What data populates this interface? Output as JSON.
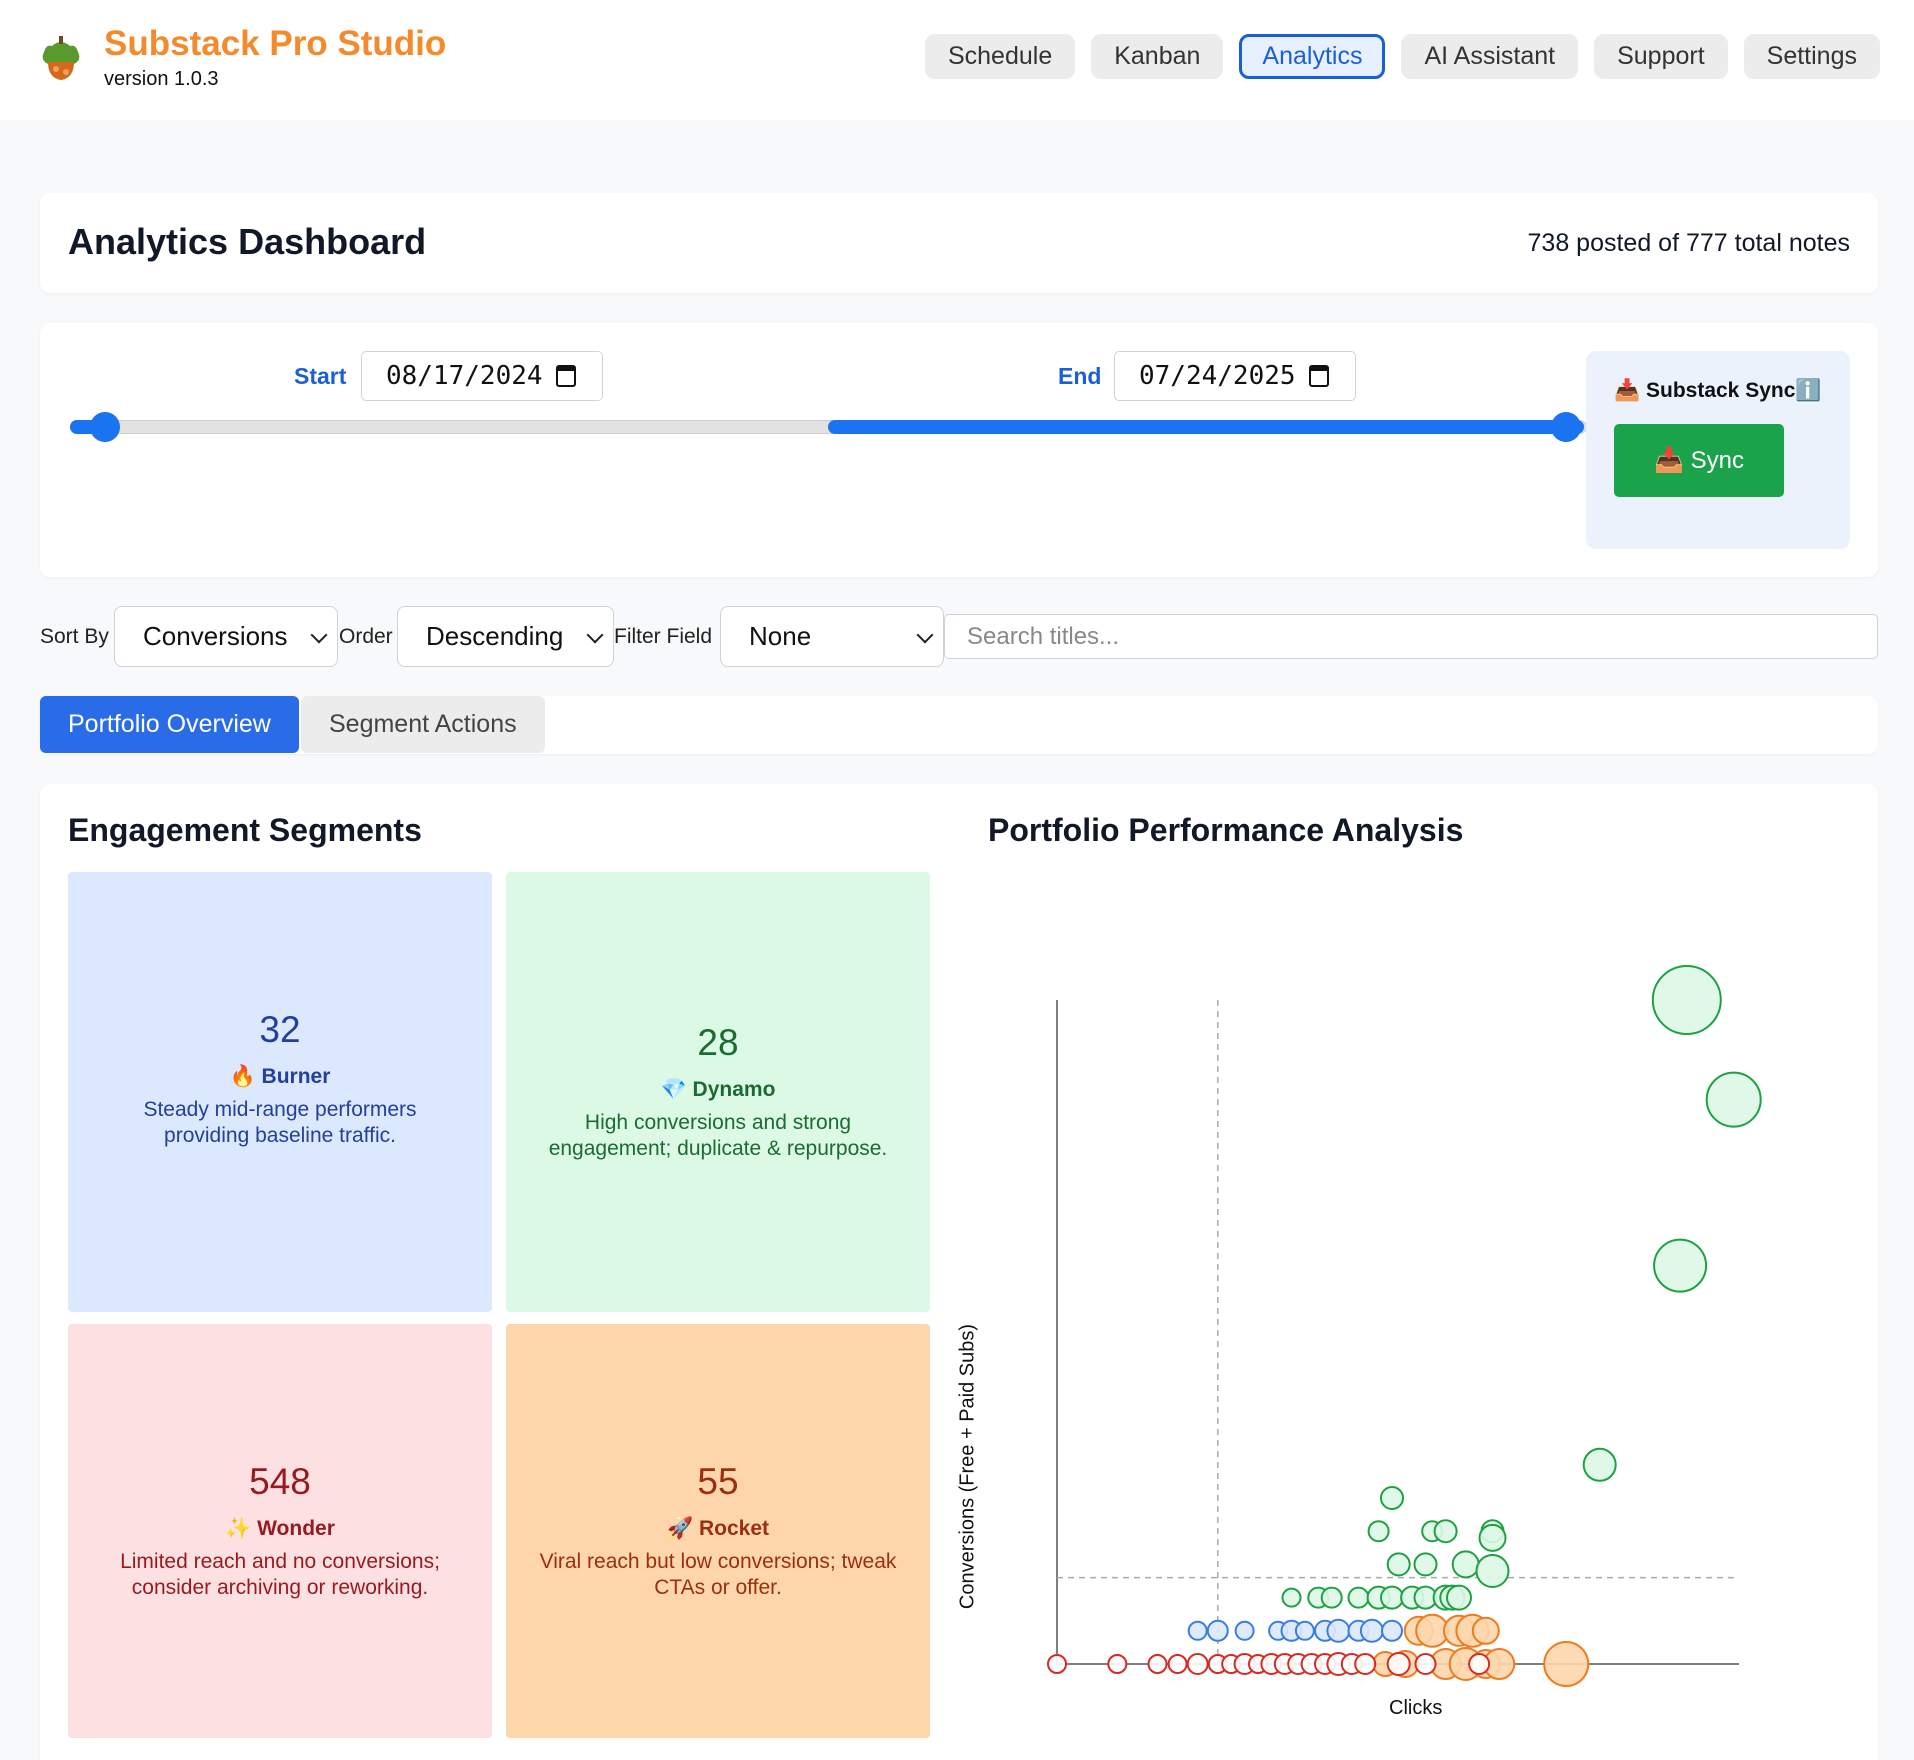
{
  "app": {
    "title": "Substack Pro Studio",
    "version": "version 1.0.3",
    "logo_icon": "acorn-logo"
  },
  "nav": {
    "items": [
      "Schedule",
      "Kanban",
      "Analytics",
      "AI Assistant",
      "Support",
      "Settings"
    ],
    "active": "Analytics"
  },
  "dashboard": {
    "title": "Analytics Dashboard",
    "summary": "738 posted of 777 total notes"
  },
  "date_range": {
    "start_label": "Start",
    "start_value": "08/17/2024",
    "end_label": "End",
    "end_value": "07/24/2025",
    "accent_color": "#1a73f0"
  },
  "sync": {
    "label": "📥 Substack Syncℹ️",
    "button_label": "📥 Sync",
    "button_color": "#1aa34a"
  },
  "filters": {
    "sort_by_label": "Sort By",
    "sort_by_value": "Conversions",
    "order_label": "Order",
    "order_value": "Descending",
    "filter_field_label": "Filter Field",
    "filter_field_value": "None",
    "search_placeholder": "Search titles..."
  },
  "tabs": {
    "items": [
      "Portfolio Overview",
      "Segment Actions"
    ],
    "active": "Portfolio Overview"
  },
  "segments": {
    "title": "Engagement Segments",
    "items": [
      {
        "count": "32",
        "name": "🔥 Burner",
        "description": "Steady mid-range performers providing baseline traffic.",
        "color": "#dbe8fd"
      },
      {
        "count": "28",
        "name": "💎 Dynamo",
        "description": "High conversions and strong engagement; duplicate & repurpose.",
        "color": "#dcf9e6"
      },
      {
        "count": "548",
        "name": "✨ Wonder",
        "description": "Limited reach and no conversions; consider archiving or reworking.",
        "color": "#fde0e2"
      },
      {
        "count": "55",
        "name": "🚀 Rocket",
        "description": "Viral reach but low conversions; tweak CTAs or offer.",
        "color": "#fdd6ac"
      }
    ]
  },
  "chart_title": "Portfolio Performance Analysis",
  "chart_data": {
    "type": "scatter",
    "title": "Portfolio Performance Analysis",
    "xlabel": "Clicks",
    "ylabel": "Conversions (Free + Paid Subs)",
    "xlim": [
      0,
      100
    ],
    "ylim": [
      0,
      100
    ],
    "grid": false,
    "ticks": false,
    "reference_lines": {
      "x": 24,
      "y": 13
    },
    "series": [
      {
        "color": "#1fa143",
        "fill": "#ddf7e6",
        "values": [
          {
            "x": 94,
            "y": 100,
            "size": 34
          },
          {
            "x": 101,
            "y": 85,
            "size": 27
          },
          {
            "x": 93,
            "y": 60,
            "size": 26
          },
          {
            "x": 81,
            "y": 30,
            "size": 16
          },
          {
            "x": 50,
            "y": 25,
            "size": 11
          },
          {
            "x": 48,
            "y": 20,
            "size": 10
          },
          {
            "x": 56,
            "y": 20,
            "size": 10
          },
          {
            "x": 58,
            "y": 20,
            "size": 11
          },
          {
            "x": 65,
            "y": 20,
            "size": 11
          },
          {
            "x": 65,
            "y": 19,
            "size": 13
          },
          {
            "x": 51,
            "y": 15,
            "size": 11
          },
          {
            "x": 55,
            "y": 15,
            "size": 11
          },
          {
            "x": 61,
            "y": 15,
            "size": 13
          },
          {
            "x": 65,
            "y": 14,
            "size": 16
          },
          {
            "x": 35,
            "y": 10,
            "size": 9
          },
          {
            "x": 39,
            "y": 10,
            "size": 10
          },
          {
            "x": 41,
            "y": 10,
            "size": 10
          },
          {
            "x": 45,
            "y": 10,
            "size": 10
          },
          {
            "x": 48,
            "y": 10,
            "size": 11
          },
          {
            "x": 50,
            "y": 10,
            "size": 11
          },
          {
            "x": 53,
            "y": 10,
            "size": 11
          },
          {
            "x": 55,
            "y": 10,
            "size": 11
          },
          {
            "x": 58,
            "y": 10,
            "size": 12
          },
          {
            "x": 59,
            "y": 10,
            "size": 12
          },
          {
            "x": 60,
            "y": 10,
            "size": 12
          }
        ]
      },
      {
        "color": "#3a7de0",
        "fill": "#dbe8fd",
        "values": [
          {
            "x": 21,
            "y": 5,
            "size": 9
          },
          {
            "x": 24,
            "y": 5,
            "size": 10
          },
          {
            "x": 28,
            "y": 5,
            "size": 9
          },
          {
            "x": 33,
            "y": 5,
            "size": 9
          },
          {
            "x": 35,
            "y": 5,
            "size": 10
          },
          {
            "x": 37,
            "y": 5,
            "size": 9
          },
          {
            "x": 40,
            "y": 5,
            "size": 10
          },
          {
            "x": 42,
            "y": 5,
            "size": 11
          },
          {
            "x": 45,
            "y": 5,
            "size": 10
          },
          {
            "x": 47,
            "y": 5,
            "size": 11
          },
          {
            "x": 50,
            "y": 5,
            "size": 10
          }
        ]
      },
      {
        "color": "#f07b1e",
        "fill": "#fdd6ac",
        "values": [
          {
            "x": 76,
            "y": 0,
            "size": 22
          },
          {
            "x": 54,
            "y": 5,
            "size": 14
          },
          {
            "x": 56,
            "y": 5,
            "size": 16
          },
          {
            "x": 60,
            "y": 5,
            "size": 15
          },
          {
            "x": 62,
            "y": 5,
            "size": 16
          },
          {
            "x": 64,
            "y": 5,
            "size": 13
          },
          {
            "x": 58,
            "y": 0,
            "size": 15
          },
          {
            "x": 61,
            "y": 0,
            "size": 16
          },
          {
            "x": 64,
            "y": 0,
            "size": 14
          },
          {
            "x": 66,
            "y": 0,
            "size": 15
          },
          {
            "x": 52,
            "y": 0,
            "size": 13
          },
          {
            "x": 49,
            "y": 0,
            "size": 12
          }
        ]
      },
      {
        "color": "#d82a20",
        "fill": "#ffffff",
        "values": [
          {
            "x": 0,
            "y": 0,
            "size": 9
          },
          {
            "x": 9,
            "y": 0,
            "size": 9
          },
          {
            "x": 15,
            "y": 0,
            "size": 9
          },
          {
            "x": 18,
            "y": 0,
            "size": 9
          },
          {
            "x": 21,
            "y": 0,
            "size": 10
          },
          {
            "x": 24,
            "y": 0,
            "size": 9
          },
          {
            "x": 26,
            "y": 0,
            "size": 9
          },
          {
            "x": 28,
            "y": 0,
            "size": 10
          },
          {
            "x": 30,
            "y": 0,
            "size": 9
          },
          {
            "x": 32,
            "y": 0,
            "size": 10
          },
          {
            "x": 34,
            "y": 0,
            "size": 10
          },
          {
            "x": 36,
            "y": 0,
            "size": 10
          },
          {
            "x": 38,
            "y": 0,
            "size": 10
          },
          {
            "x": 40,
            "y": 0,
            "size": 10
          },
          {
            "x": 42,
            "y": 0,
            "size": 11
          },
          {
            "x": 44,
            "y": 0,
            "size": 10
          },
          {
            "x": 46,
            "y": 0,
            "size": 10
          },
          {
            "x": 51,
            "y": 0,
            "size": 11
          },
          {
            "x": 55,
            "y": 0,
            "size": 10
          },
          {
            "x": 63,
            "y": 0,
            "size": 10
          }
        ]
      }
    ]
  }
}
